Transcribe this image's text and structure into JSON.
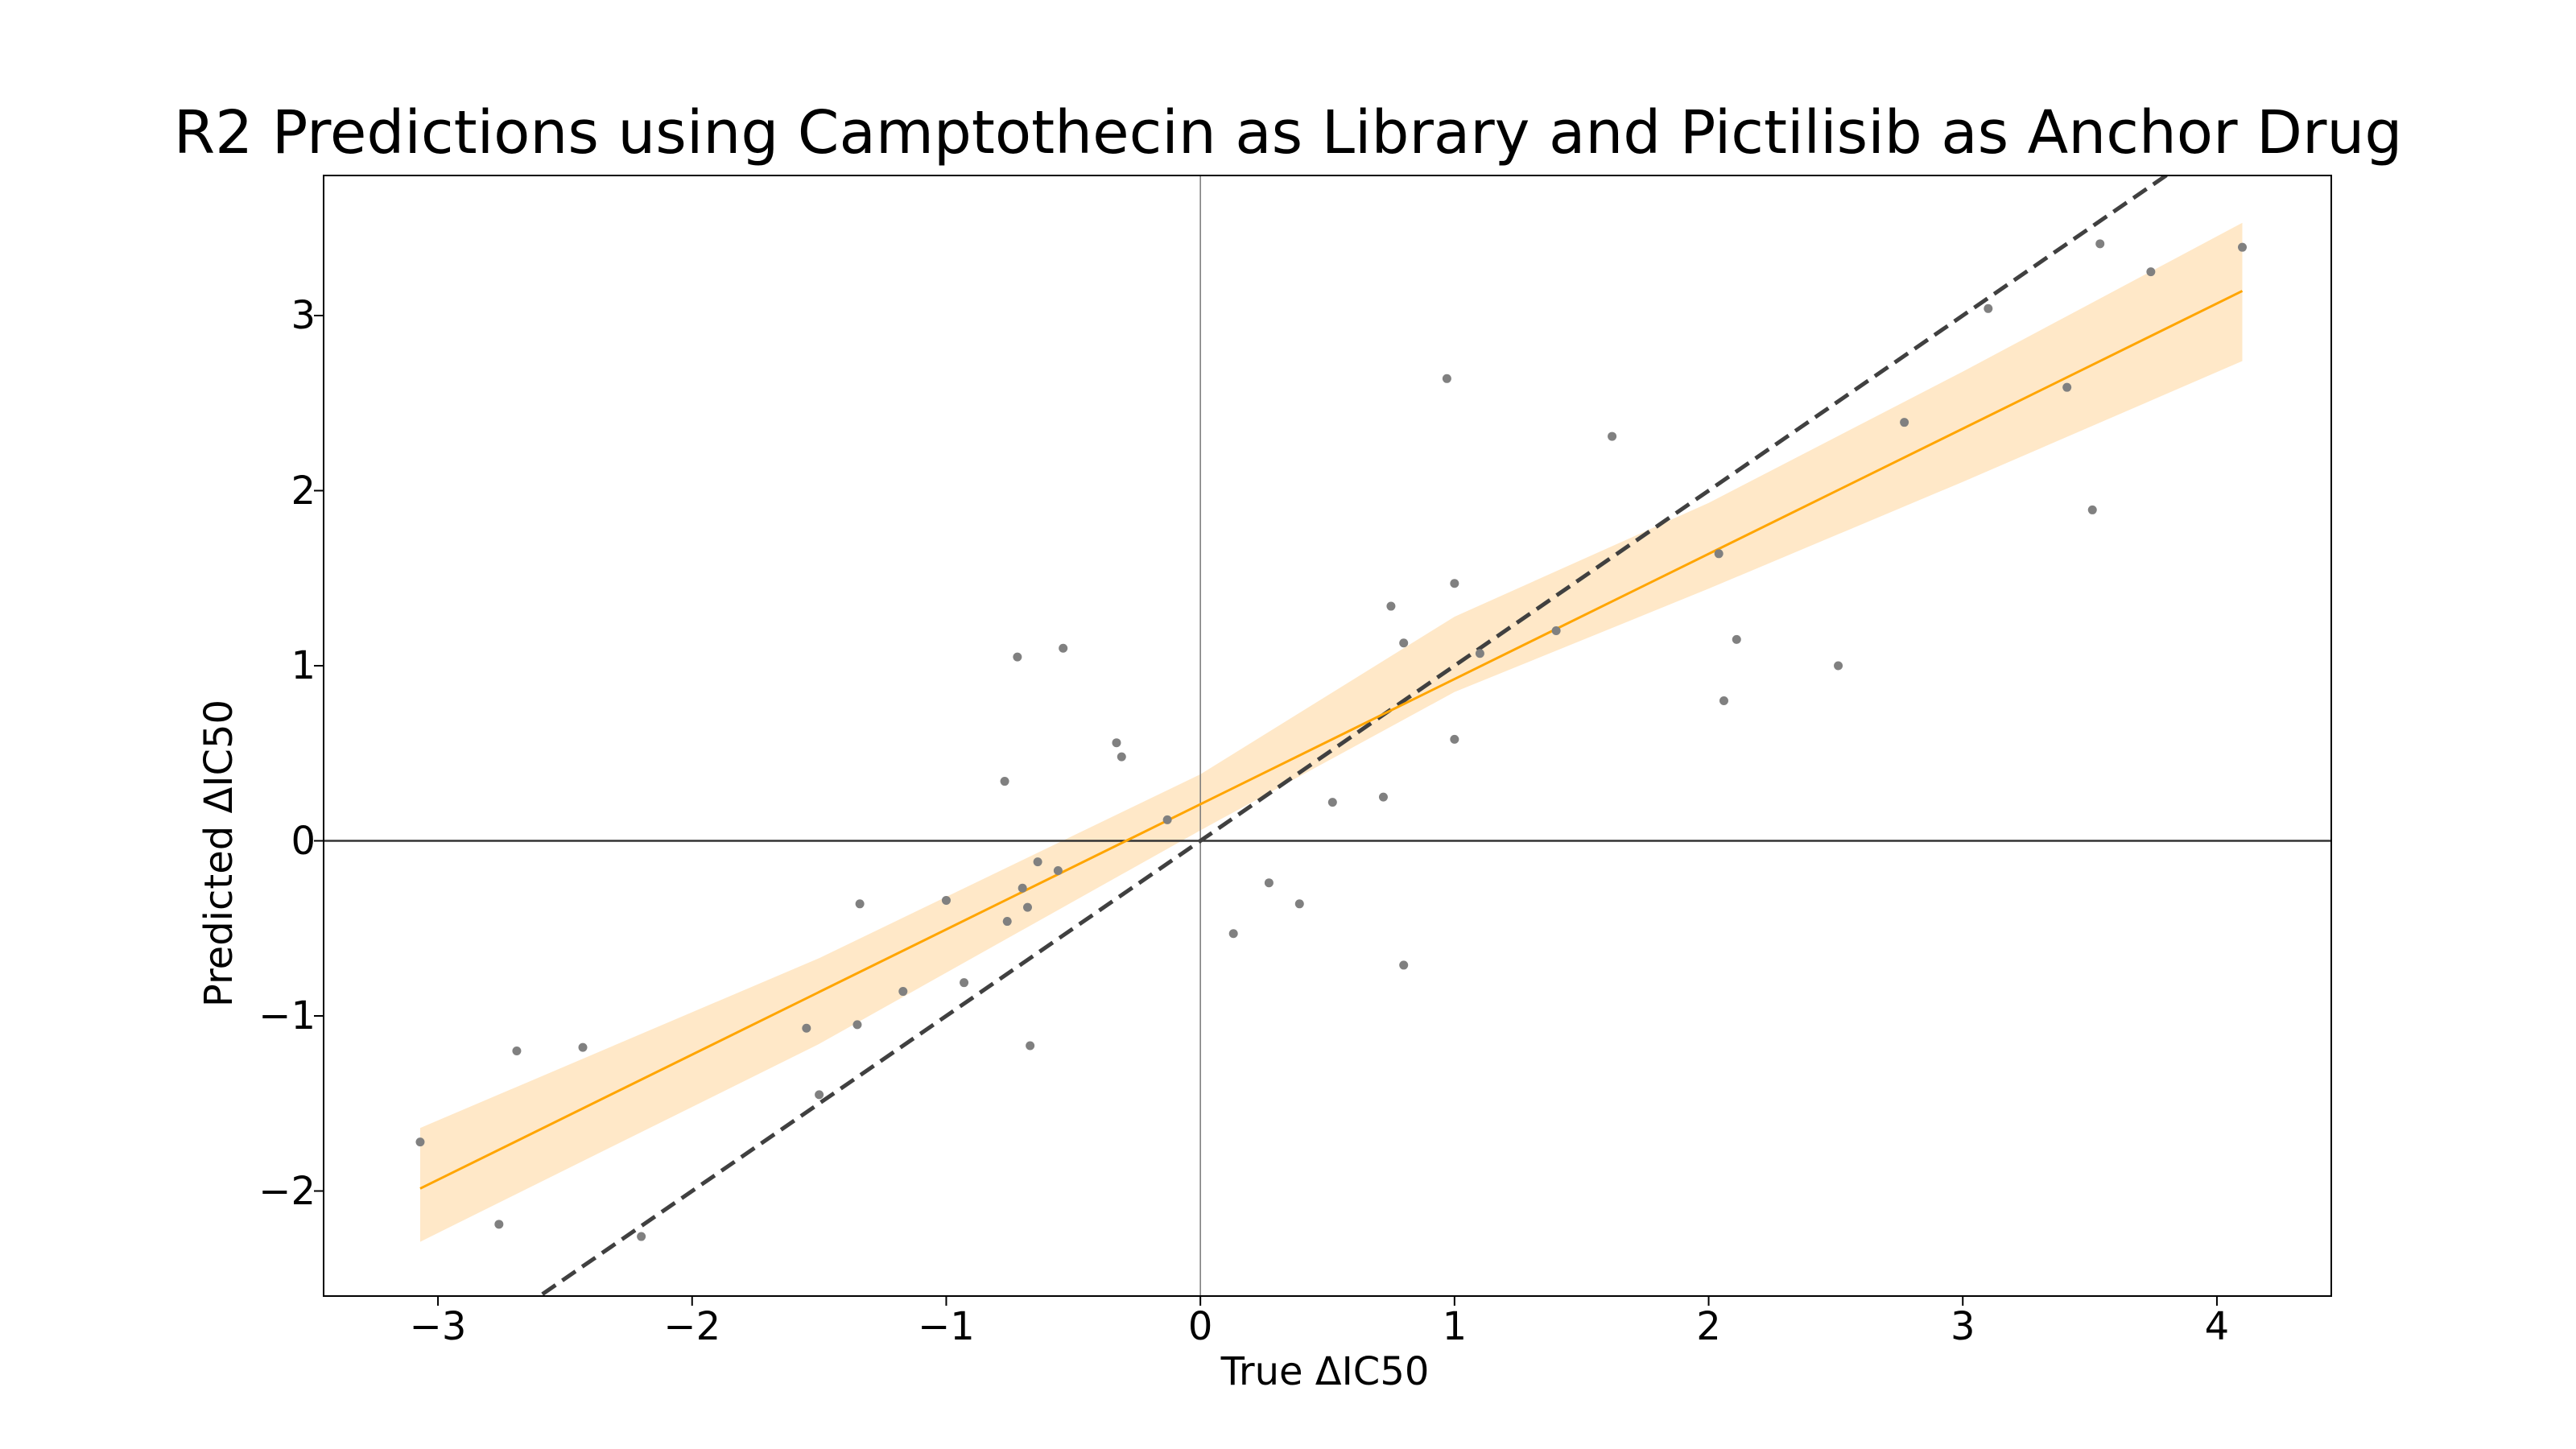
{
  "chart_data": {
    "type": "scatter",
    "title": "R2 Predictions using Camptothecin as Library and Pictilisib as Anchor Drug",
    "xlabel": "True ΔIC50",
    "ylabel": "Predicted ΔIC50",
    "xlim": [
      -3.45,
      4.45
    ],
    "ylim": [
      -2.6,
      3.8
    ],
    "x_ticks": [
      -3,
      -2,
      -1,
      0,
      1,
      2,
      3,
      4
    ],
    "x_tick_labels": [
      "−3",
      "−2",
      "−1",
      "0",
      "1",
      "2",
      "3",
      "4"
    ],
    "y_ticks": [
      -2,
      -1,
      0,
      1,
      2,
      3
    ],
    "y_tick_labels": [
      "−2",
      "−1",
      "0",
      "1",
      "2",
      "3"
    ],
    "grid": false,
    "legend": "none",
    "reference_lines": {
      "identity_line": "y = x (dashed)",
      "horizontal_zero": true,
      "vertical_zero": true
    },
    "regression": {
      "slope": 0.715,
      "intercept": 0.209,
      "x_range": [
        -3.07,
        4.1
      ],
      "band_lower": [
        [
          -3.07,
          -2.29
        ],
        [
          -1.5,
          -1.16
        ],
        [
          0,
          0.06
        ],
        [
          1,
          0.85
        ],
        [
          2,
          1.44
        ],
        [
          3,
          2.05
        ],
        [
          4.1,
          2.74
        ]
      ],
      "band_upper": [
        [
          -3.07,
          -1.64
        ],
        [
          -1.5,
          -0.67
        ],
        [
          0,
          0.38
        ],
        [
          1,
          1.28
        ],
        [
          2,
          1.93
        ],
        [
          3,
          2.68
        ],
        [
          4.1,
          3.53
        ]
      ]
    },
    "colors": {
      "points": "#808080",
      "regression": "#FFA500",
      "band": "#FFE8C8",
      "identity": "#404040",
      "axes": "#000000"
    },
    "points": [
      [
        -3.07,
        -1.72
      ],
      [
        -2.76,
        -2.19
      ],
      [
        -2.69,
        -1.2
      ],
      [
        -2.43,
        -1.18
      ],
      [
        -2.2,
        -2.26
      ],
      [
        -1.55,
        -1.07
      ],
      [
        -1.5,
        -1.45
      ],
      [
        -1.35,
        -1.05
      ],
      [
        -1.34,
        -0.36
      ],
      [
        -1.17,
        -0.86
      ],
      [
        -1.0,
        -0.34
      ],
      [
        -0.93,
        -0.81
      ],
      [
        -0.77,
        0.34
      ],
      [
        -0.76,
        -0.46
      ],
      [
        -0.72,
        1.05
      ],
      [
        -0.7,
        -0.27
      ],
      [
        -0.68,
        -0.38
      ],
      [
        -0.67,
        -1.17
      ],
      [
        -0.64,
        -0.12
      ],
      [
        -0.56,
        -0.17
      ],
      [
        -0.54,
        1.1
      ],
      [
        -0.33,
        0.56
      ],
      [
        -0.31,
        0.48
      ],
      [
        -0.13,
        0.12
      ],
      [
        0.13,
        -0.53
      ],
      [
        0.27,
        -0.24
      ],
      [
        0.39,
        -0.36
      ],
      [
        0.52,
        0.22
      ],
      [
        0.72,
        0.25
      ],
      [
        0.75,
        1.34
      ],
      [
        0.8,
        1.13
      ],
      [
        0.8,
        -0.71
      ],
      [
        0.97,
        2.64
      ],
      [
        1.0,
        1.47
      ],
      [
        1.0,
        0.58
      ],
      [
        1.1,
        1.07
      ],
      [
        1.4,
        1.2
      ],
      [
        1.62,
        2.31
      ],
      [
        2.04,
        1.64
      ],
      [
        2.06,
        0.8
      ],
      [
        2.11,
        1.15
      ],
      [
        2.51,
        1.0
      ],
      [
        2.77,
        2.39
      ],
      [
        3.1,
        3.04
      ],
      [
        3.41,
        2.59
      ],
      [
        3.51,
        1.89
      ],
      [
        3.54,
        3.41
      ],
      [
        3.74,
        3.25
      ],
      [
        4.1,
        3.39
      ]
    ]
  }
}
